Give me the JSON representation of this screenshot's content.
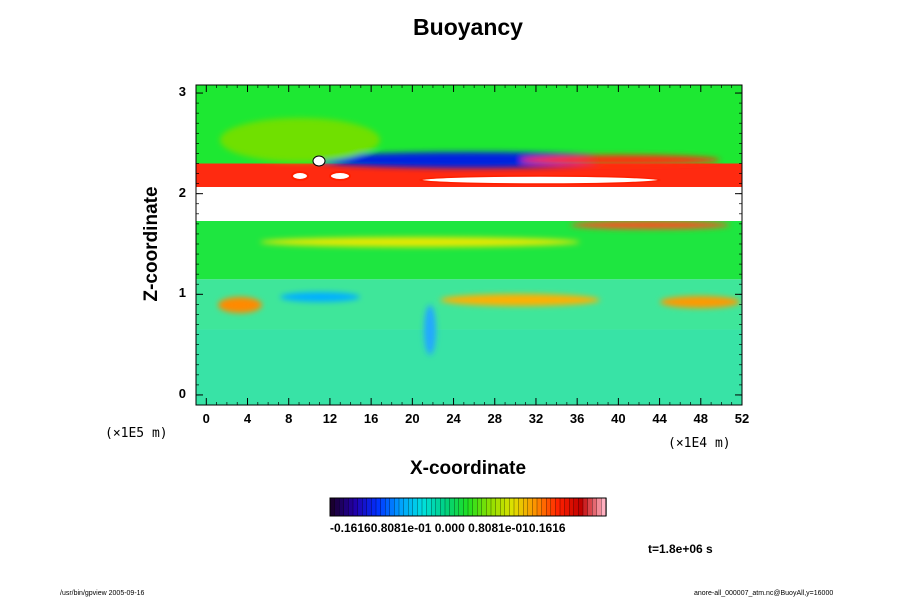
{
  "chart_data": {
    "type": "heatmap",
    "title": "Buoyancy",
    "xlabel": "X-coordinate",
    "ylabel": "Z-coordinate",
    "x_ticks": [
      "0",
      "4",
      "8",
      "12",
      "16",
      "20",
      "24",
      "28",
      "32",
      "36",
      "40",
      "44",
      "48",
      "52"
    ],
    "y_ticks": [
      "0",
      "1",
      "2",
      "3"
    ],
    "xlim": [
      -1,
      52
    ],
    "ylim": [
      -0.1,
      3.08
    ],
    "x_unit": "(×1E4 m)",
    "y_unit": "(×1E5 m)",
    "colorbar": {
      "min": -0.1616,
      "max": 0.1616,
      "labels_text": "-0.16160.8081e-01 0.000 0.8081e-010.1616",
      "colormap": [
        "#1a0030",
        "#2200aa",
        "#0030ff",
        "#00a0ff",
        "#00e0e0",
        "#00d080",
        "#20e020",
        "#90e000",
        "#e0e000",
        "#ff9000",
        "#ff2000",
        "#c00000",
        "#ffb0c0"
      ]
    },
    "time_label": "t=1.8e+06 s",
    "bands": [
      {
        "z0": -0.1,
        "z1": 0.65,
        "value": "#38e3a6"
      },
      {
        "z0": 0.65,
        "z1": 1.15,
        "value": "#3fe69a"
      },
      {
        "z0": 1.15,
        "z1": 1.75,
        "value": "#1ee640"
      },
      {
        "z0": 1.75,
        "z1": 2.02,
        "value": "#ffffff"
      },
      {
        "z0": 2.02,
        "z1": 2.3,
        "value": "#ff2a10"
      },
      {
        "z0": 2.3,
        "z1": 3.08,
        "value": "#1de832"
      }
    ]
  },
  "footer": {
    "left": "/usr/bin/gpview 2005-09-16",
    "right": "anore-all_000007_atm.nc@BuoyAll,y=16000"
  }
}
